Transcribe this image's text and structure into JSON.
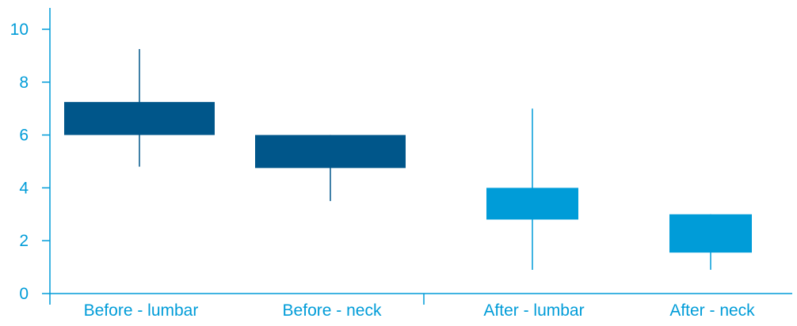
{
  "chart_data": {
    "type": "box",
    "title": "",
    "xlabel": "",
    "ylabel": "",
    "ylim": [
      0,
      10
    ],
    "y_ticks": [
      "0",
      "2",
      "4",
      "6",
      "8",
      "10"
    ],
    "categories": [
      "Before - lumbar",
      "Before - neck",
      "After - lumbar",
      "After - neck"
    ],
    "boxes": [
      {
        "category": "Before - lumbar",
        "whisker_low": 4.8,
        "box_low": 6.0,
        "box_high": 7.25,
        "whisker_high": 9.25,
        "color": "#00568a"
      },
      {
        "category": "Before - neck",
        "whisker_low": 3.5,
        "box_low": 4.75,
        "box_high": 6.0,
        "whisker_high": 6.0,
        "color": "#00568a"
      },
      {
        "category": "After - lumbar",
        "whisker_low": 0.9,
        "box_low": 2.8,
        "box_high": 4.0,
        "whisker_high": 7.0,
        "color": "#009cd8"
      },
      {
        "category": "After - neck",
        "whisker_low": 0.9,
        "box_low": 1.55,
        "box_high": 3.0,
        "whisker_high": 3.0,
        "color": "#009cd8"
      }
    ],
    "grid": false,
    "legend": "none",
    "colors": {
      "axis": "#009cd8",
      "text": "#009cd8"
    }
  }
}
